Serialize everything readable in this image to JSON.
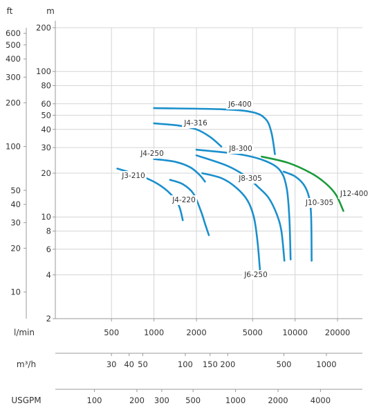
{
  "chart_data": {
    "type": "line",
    "x_scale": "log",
    "y_scale": "log",
    "grid": true,
    "x_unit_label": "l/min",
    "y_unit_label": "m",
    "xlim": [
      200,
      30000
    ],
    "ylim": [
      2,
      200
    ],
    "x_ticks": [
      500,
      1000,
      2000,
      5000,
      10000,
      20000
    ],
    "y_ticks": [
      2,
      4,
      6,
      8,
      10,
      20,
      30,
      40,
      50,
      60,
      80,
      100,
      200
    ],
    "secondary_y_axis": {
      "unit_label": "ft",
      "ticks": [
        10,
        20,
        30,
        40,
        50,
        100,
        200,
        300,
        400,
        500,
        600
      ]
    },
    "secondary_x_axes": [
      {
        "unit_label": "m³/h",
        "ticks": [
          30,
          40,
          50,
          100,
          150,
          200,
          500,
          1000
        ]
      },
      {
        "unit_label": "USGPM",
        "ticks": [
          100,
          200,
          300,
          500,
          1000,
          2000,
          4000
        ]
      }
    ],
    "series": [
      {
        "name": "J3-210",
        "color": "#1a8fcc",
        "points": [
          [
            550,
            21.5
          ],
          [
            800,
            19.2
          ],
          [
            1050,
            17.0
          ],
          [
            1300,
            14.5
          ],
          [
            1500,
            12.0
          ],
          [
            1600,
            9.5
          ]
        ]
      },
      {
        "name": "J4-220",
        "color": "#1a8fcc",
        "points": [
          [
            1300,
            18.0
          ],
          [
            1600,
            16.8
          ],
          [
            1900,
            14.5
          ],
          [
            2150,
            11.0
          ],
          [
            2300,
            9.0
          ],
          [
            2450,
            7.5
          ]
        ]
      },
      {
        "name": "J4-250",
        "color": "#1a8fcc",
        "points": [
          [
            1000,
            25.0
          ],
          [
            1400,
            24.0
          ],
          [
            1800,
            22.0
          ],
          [
            2100,
            19.5
          ],
          [
            2300,
            17.5
          ]
        ]
      },
      {
        "name": "J4-316",
        "color": "#1a8fcc",
        "points": [
          [
            1000,
            44.0
          ],
          [
            1500,
            42.5
          ],
          [
            2000,
            40.0
          ],
          [
            2500,
            35.5
          ],
          [
            3000,
            30.5
          ]
        ]
      },
      {
        "name": "J6-400",
        "color": "#1a8fcc",
        "points": [
          [
            1000,
            56.0
          ],
          [
            3000,
            55.0
          ],
          [
            5000,
            52.5
          ],
          [
            6200,
            47.0
          ],
          [
            6800,
            38.0
          ],
          [
            7200,
            27.0
          ]
        ]
      },
      {
        "name": "J6-250",
        "color": "#1a8fcc",
        "points": [
          [
            2200,
            20.0
          ],
          [
            3000,
            18.5
          ],
          [
            3800,
            16.0
          ],
          [
            4600,
            13.0
          ],
          [
            5100,
            10.0
          ],
          [
            5400,
            7.0
          ],
          [
            5650,
            4.2
          ]
        ]
      },
      {
        "name": "J8-300",
        "color": "#1a8fcc",
        "points": [
          [
            2000,
            29.0
          ],
          [
            4000,
            27.0
          ],
          [
            6000,
            24.5
          ],
          [
            7800,
            21.0
          ],
          [
            8700,
            16.0
          ],
          [
            9100,
            10.0
          ],
          [
            9300,
            5.1
          ]
        ]
      },
      {
        "name": "J8-305",
        "color": "#1a8fcc",
        "points": [
          [
            2000,
            26.5
          ],
          [
            3300,
            22.5
          ],
          [
            4500,
            19.0
          ],
          [
            5500,
            16.0
          ],
          [
            6500,
            13.5
          ],
          [
            7400,
            10.5
          ],
          [
            8000,
            8.0
          ],
          [
            8400,
            5.0
          ]
        ]
      },
      {
        "name": "J10-305",
        "color": "#1a8fcc",
        "points": [
          [
            8300,
            20.5
          ],
          [
            10000,
            19.0
          ],
          [
            11600,
            16.5
          ],
          [
            12600,
            13.5
          ],
          [
            13000,
            10.0
          ],
          [
            13100,
            5.0
          ]
        ]
      },
      {
        "name": "J12-400",
        "color": "#1a9a3a",
        "points": [
          [
            5800,
            26.0
          ],
          [
            9000,
            23.5
          ],
          [
            13000,
            20.0
          ],
          [
            16500,
            17.0
          ],
          [
            19500,
            14.2
          ],
          [
            22000,
            11.0
          ]
        ]
      }
    ]
  }
}
